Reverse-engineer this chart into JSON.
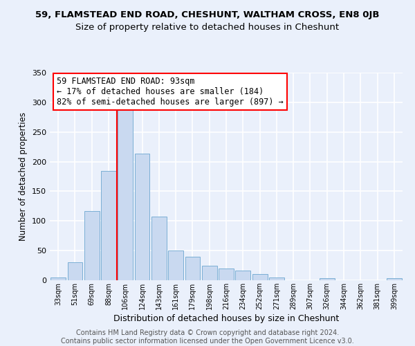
{
  "title": "59, FLAMSTEAD END ROAD, CHESHUNT, WALTHAM CROSS, EN8 0JB",
  "subtitle": "Size of property relative to detached houses in Cheshunt",
  "xlabel": "Distribution of detached houses by size in Cheshunt",
  "ylabel": "Number of detached properties",
  "bar_labels": [
    "33sqm",
    "51sqm",
    "69sqm",
    "88sqm",
    "106sqm",
    "124sqm",
    "143sqm",
    "161sqm",
    "179sqm",
    "198sqm",
    "216sqm",
    "234sqm",
    "252sqm",
    "271sqm",
    "289sqm",
    "307sqm",
    "326sqm",
    "344sqm",
    "362sqm",
    "381sqm",
    "399sqm"
  ],
  "bar_values": [
    5,
    30,
    117,
    184,
    287,
    213,
    107,
    50,
    40,
    25,
    20,
    16,
    11,
    5,
    0,
    0,
    4,
    0,
    0,
    0,
    4
  ],
  "bar_color": "#c9d9f0",
  "bar_edge_color": "#7bafd4",
  "vline_x_index": 3,
  "vline_color": "red",
  "annotation_text": "59 FLAMSTEAD END ROAD: 93sqm\n← 17% of detached houses are smaller (184)\n82% of semi-detached houses are larger (897) →",
  "annotation_box_color": "white",
  "annotation_box_edge_color": "red",
  "ylim": [
    0,
    350
  ],
  "yticks": [
    0,
    50,
    100,
    150,
    200,
    250,
    300,
    350
  ],
  "footer1": "Contains HM Land Registry data © Crown copyright and database right 2024.",
  "footer2": "Contains public sector information licensed under the Open Government Licence v3.0.",
  "bg_color": "#eaf0fb",
  "plot_bg_color": "#eaf0fb",
  "grid_color": "white",
  "title_fontsize": 9.5,
  "subtitle_fontsize": 9.5,
  "xlabel_fontsize": 9,
  "ylabel_fontsize": 8.5,
  "footer_fontsize": 7,
  "annotation_fontsize": 8.5
}
